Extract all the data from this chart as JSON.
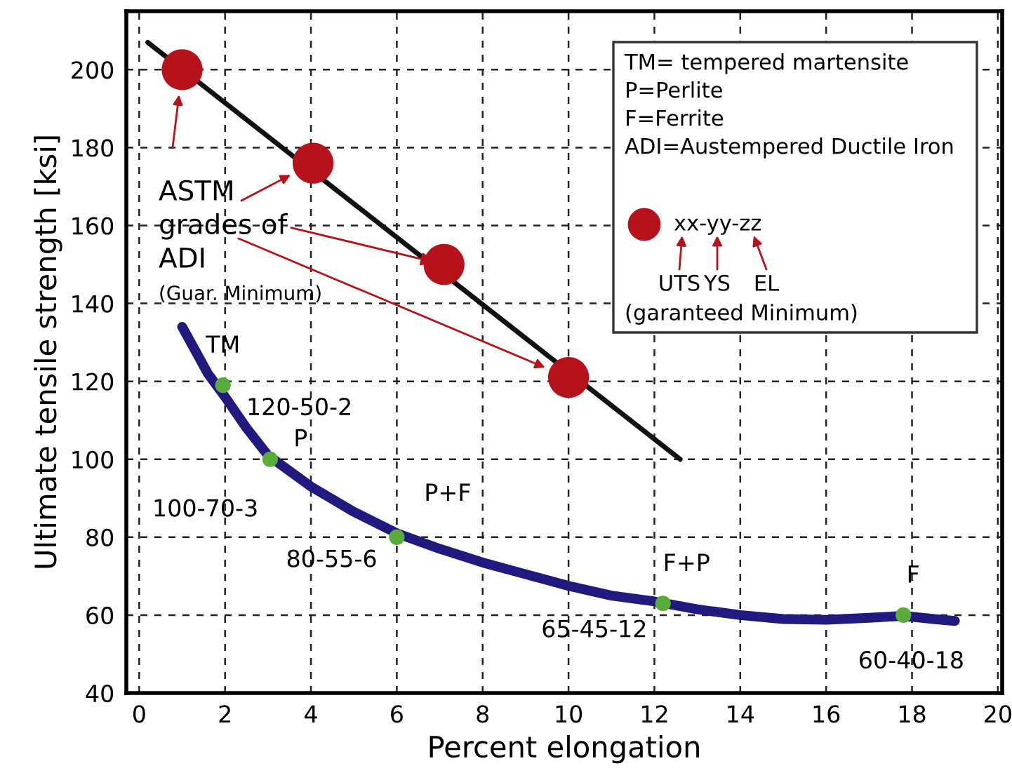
{
  "chart_data": {
    "type": "line",
    "xlabel": "Percent elongation",
    "ylabel": "Ultimate tensile strength [ksi]",
    "xlim": [
      -0.3,
      20.1
    ],
    "ylim": [
      40,
      215
    ],
    "xticks": [
      0,
      2,
      4,
      6,
      8,
      10,
      12,
      14,
      16,
      18,
      20
    ],
    "yticks": [
      40,
      60,
      80,
      100,
      120,
      140,
      160,
      180,
      200
    ],
    "grid": true,
    "line_style": "solid",
    "series": [
      {
        "color": "#111111",
        "x": [
          0.2,
          12.6
        ],
        "values": [
          207,
          100
        ]
      },
      {
        "color": "#211a7e",
        "x": [
          1.0,
          1.3,
          1.6,
          2.0,
          2.5,
          3.0,
          4.0,
          5.0,
          6.0,
          7.0,
          8.0,
          9.0,
          10.0,
          11.0,
          12.0,
          13.0,
          14.0,
          15.0,
          16.0,
          17.0,
          17.8,
          18.5,
          19.0
        ],
        "values": [
          134,
          128,
          122,
          116,
          108,
          101,
          93,
          86.5,
          81,
          77,
          73.5,
          70.5,
          67.5,
          65,
          63.5,
          61.5,
          60,
          59,
          58.8,
          59.3,
          59.8,
          59,
          58.5
        ]
      },
      {
        "type": "scatter",
        "color": "#b5121b",
        "marker": "circle",
        "x": [
          1.0,
          4.05,
          7.1,
          10.0
        ],
        "values": [
          200,
          176,
          150,
          121
        ]
      },
      {
        "type": "scatter",
        "color": "#5aac3a",
        "marker": "circle",
        "x": [
          1.95,
          3.05,
          6.0,
          12.2,
          17.8
        ],
        "values": [
          119,
          100,
          80,
          63,
          60
        ]
      }
    ],
    "annotations": [
      {
        "text": "ASTM\ngrades of\nADI",
        "x": 7.1,
        "y": 150
      },
      "(Guar. Minimum)",
      "TM= tempered martensite\nP=Perlite\nF=Ferrite\nADI=Austempered Ductile Iron",
      "xx-yy-zz",
      "UTS",
      "YS",
      "EL",
      "(garanteed Minimum)",
      {
        "text": "TM",
        "x": 1.95,
        "y": 119
      },
      {
        "text": "120-50-2",
        "x": 1.95,
        "y": 119
      },
      {
        "text": "P",
        "x": 3.05,
        "y": 100
      },
      {
        "text": "100-70-3",
        "x": 3.05,
        "y": 100
      },
      {
        "text": "P+F",
        "x": 6.0,
        "y": 80
      },
      {
        "text": "80-55-6",
        "x": 6.0,
        "y": 80
      },
      {
        "text": "F+P",
        "x": 12.2,
        "y": 63
      },
      {
        "text": "65-45-12",
        "x": 12.2,
        "y": 63
      },
      {
        "text": "F",
        "x": 17.8,
        "y": 60
      },
      {
        "text": "60-40-18",
        "x": 17.8,
        "y": 60
      }
    ]
  }
}
